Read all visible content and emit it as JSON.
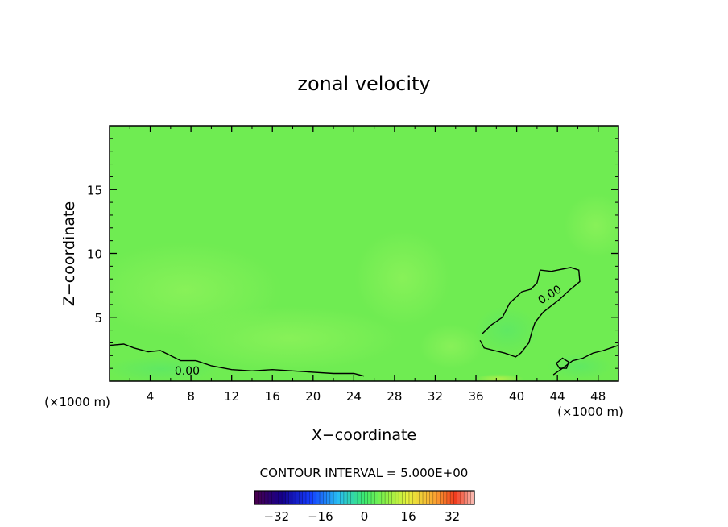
{
  "chart_data": {
    "type": "contour",
    "title": "zonal velocity",
    "xlabel": "X−coordinate",
    "ylabel": "Z−coordinate",
    "x_units": "(×1000 m)",
    "xlim": [
      0,
      50
    ],
    "ylim": [
      0,
      20
    ],
    "x_ticks": [
      4,
      8,
      12,
      16,
      20,
      24,
      28,
      32,
      36,
      40,
      44,
      48
    ],
    "y_ticks": [
      5,
      10,
      15
    ],
    "field_value_approx": 0,
    "contour_level_labels": [
      "0.00",
      "0.00"
    ],
    "zero_contours": [
      {
        "name": "upper-right blob",
        "points": [
          [
            36.6,
            3.7
          ],
          [
            37.5,
            4.4
          ],
          [
            38.6,
            5.0
          ],
          [
            39.3,
            6.1
          ],
          [
            40.5,
            7.0
          ],
          [
            41.4,
            7.2
          ],
          [
            42.0,
            7.7
          ],
          [
            42.3,
            8.7
          ],
          [
            43.4,
            8.6
          ],
          [
            45.3,
            8.9
          ],
          [
            46.1,
            8.7
          ],
          [
            46.2,
            7.8
          ],
          [
            45.0,
            7.0
          ],
          [
            44.2,
            6.4
          ],
          [
            43.4,
            5.9
          ],
          [
            42.6,
            5.4
          ],
          [
            41.8,
            4.6
          ],
          [
            41.5,
            3.9
          ],
          [
            41.2,
            3.0
          ],
          [
            40.4,
            2.2
          ],
          [
            39.9,
            1.9
          ],
          [
            38.8,
            2.2
          ],
          [
            37.8,
            2.4
          ],
          [
            36.8,
            2.6
          ],
          [
            36.4,
            3.2
          ]
        ]
      },
      {
        "name": "lower-left boundary",
        "points": [
          [
            0,
            2.8
          ],
          [
            1.4,
            2.9
          ],
          [
            2.4,
            2.6
          ],
          [
            3.8,
            2.3
          ],
          [
            5.0,
            2.4
          ],
          [
            6.0,
            2.0
          ],
          [
            7.0,
            1.6
          ],
          [
            8.5,
            1.6
          ],
          [
            10.0,
            1.2
          ],
          [
            12.0,
            0.9
          ],
          [
            14.0,
            0.8
          ],
          [
            16.0,
            0.9
          ],
          [
            18.0,
            0.8
          ],
          [
            20.0,
            0.7
          ],
          [
            22.0,
            0.6
          ],
          [
            24.0,
            0.6
          ],
          [
            25.0,
            0.4
          ]
        ]
      },
      {
        "name": "lower-right boundary",
        "points": [
          [
            43.6,
            0.5
          ],
          [
            44.5,
            1.0
          ],
          [
            45.5,
            1.6
          ],
          [
            46.5,
            1.8
          ],
          [
            47.5,
            2.2
          ],
          [
            48.5,
            2.4
          ],
          [
            50,
            2.8
          ]
        ]
      },
      {
        "name": "small loop near x=44.5",
        "points": [
          [
            43.9,
            1.4
          ],
          [
            44.5,
            1.8
          ],
          [
            45.1,
            1.5
          ],
          [
            44.9,
            1.0
          ],
          [
            44.2,
            1.0
          ],
          [
            43.9,
            1.4
          ]
        ]
      }
    ],
    "colorbar": {
      "ticks": [
        -32,
        -16,
        0,
        16,
        32
      ],
      "range": [
        -40,
        40
      ]
    },
    "contour_interval_text": "CONTOUR INTERVAL = 5.000E+00"
  }
}
